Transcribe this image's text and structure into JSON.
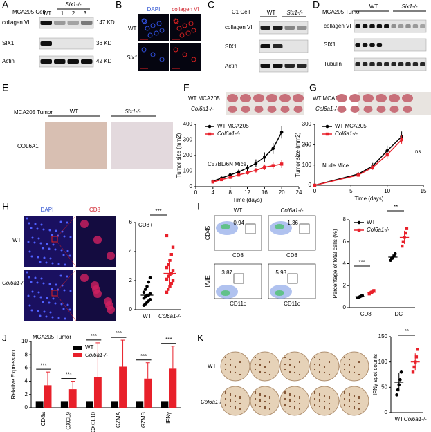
{
  "panels": {
    "A": {
      "label": "A",
      "title": "MCA205 Cell",
      "group": "Six1-/-",
      "lanes": [
        "WT",
        "1",
        "2",
        "3"
      ],
      "rows": [
        "collagen VI",
        "SIX1",
        "Actin"
      ],
      "sizes": [
        "147 KD",
        "36 KD",
        "42 KD"
      ]
    },
    "B": {
      "label": "B",
      "columns": [
        "DAPI",
        "collagen VI"
      ],
      "rows": [
        "WT",
        "Six1-/-"
      ]
    },
    "C": {
      "label": "C",
      "title": "TC1 Cell",
      "groups": [
        "WT",
        "Six1-/-"
      ],
      "rows": [
        "collagen VI",
        "SIX1",
        "Actin"
      ]
    },
    "D": {
      "label": "D",
      "title": "MCA205 Tumor",
      "groups": [
        "WT",
        "Six1-/-"
      ],
      "rows": [
        "collagen VI",
        "SIX1",
        "Tubulin"
      ]
    },
    "E": {
      "label": "E",
      "title": "MCA205 Tumor",
      "groups": [
        "WT",
        "Six1-/-"
      ],
      "row": "COL6A1"
    },
    "F": {
      "label": "F",
      "rows": [
        "WT MCA205",
        "Col6a1-/-"
      ]
    },
    "G": {
      "label": "G",
      "rows": [
        "WT MCA205",
        "Col6a1-/-"
      ]
    },
    "H": {
      "label": "H",
      "columns": [
        "DAPI",
        "CD8"
      ],
      "rows": [
        "WT",
        "Col6a1-/-"
      ]
    },
    "I": {
      "label": "I",
      "columns": [
        "WT",
        "Col6a1-/-"
      ],
      "ylabels": [
        "CD45",
        "IA/IE"
      ],
      "plots": [
        {
          "x": "CD8",
          "gate": "0.94"
        },
        {
          "x": "CD8",
          "gate": "1.36"
        },
        {
          "x": "CD11c",
          "gate": "3.87"
        },
        {
          "x": "CD11c",
          "gate": "5.93"
        }
      ]
    },
    "J": {
      "label": "J"
    },
    "K": {
      "label": "K",
      "rows": [
        "WT",
        "Col6a1-/-"
      ]
    }
  },
  "chart_data": [
    {
      "type": "line",
      "ylabel": "Tumor size (mm2)",
      "xlabel": "Time (days)",
      "xlim": [
        0,
        24
      ],
      "xticks": [
        0,
        4,
        8,
        12,
        16,
        20,
        24
      ],
      "ylim": [
        0,
        400
      ],
      "yticks": [
        0,
        100,
        200,
        300,
        400
      ],
      "x": [
        4,
        6,
        8,
        10,
        12,
        14,
        16,
        18,
        20
      ],
      "series": [
        {
          "name": "WT MCA205",
          "color": "#000000",
          "values": [
            35,
            55,
            75,
            95,
            120,
            150,
            190,
            245,
            350
          ],
          "errors": [
            5,
            8,
            10,
            15,
            20,
            25,
            30,
            35,
            40
          ]
        },
        {
          "name": "Col6a1-/-",
          "color": "#e8202a",
          "values": [
            30,
            45,
            60,
            75,
            90,
            105,
            125,
            135,
            145
          ],
          "errors": [
            5,
            6,
            8,
            10,
            12,
            15,
            18,
            20,
            25
          ]
        }
      ],
      "annotations": [
        "C57BL/6N Mice",
        "**"
      ]
    },
    {
      "type": "line",
      "ylabel": "Tumor size (mm2)",
      "xlabel": "Time (days)",
      "xlim": [
        0,
        15
      ],
      "xticks": [
        0,
        5,
        10,
        15
      ],
      "ylim": [
        0,
        300
      ],
      "yticks": [
        0,
        100,
        200,
        300
      ],
      "x": [
        0,
        6,
        8,
        10,
        12
      ],
      "series": [
        {
          "name": "WT MCA205",
          "color": "#000000",
          "values": [
            0,
            55,
            95,
            170,
            240
          ],
          "errors": [
            0,
            10,
            15,
            25,
            25
          ]
        },
        {
          "name": "Col6a1-/-",
          "color": "#e8202a",
          "values": [
            0,
            50,
            88,
            150,
            225
          ],
          "errors": [
            0,
            8,
            12,
            20,
            20
          ]
        }
      ],
      "annotations": [
        "Nude Mice",
        "ns"
      ]
    },
    {
      "type": "strip",
      "title": "CD8+",
      "ylim": [
        0,
        6
      ],
      "yticks": [
        0,
        2,
        4,
        6
      ],
      "categories": [
        "WT",
        "Col6a1-/-"
      ],
      "colors": [
        "#000000",
        "#e8202a"
      ],
      "values": [
        [
          0.3,
          0.4,
          0.5,
          0.6,
          0.7,
          0.8,
          0.9,
          1.0,
          1.0,
          1.1,
          1.2,
          1.4,
          1.6,
          1.9,
          2.2
        ],
        [
          1.2,
          1.4,
          1.6,
          1.8,
          2.0,
          2.1,
          2.3,
          2.4,
          2.5,
          2.7,
          2.9,
          3.1,
          3.4,
          3.8,
          4.3,
          5.1
        ]
      ],
      "means": [
        1.0,
        2.5
      ],
      "sds": [
        0.5,
        1.0
      ],
      "annotations": [
        "***"
      ]
    },
    {
      "type": "strip",
      "ylabel": "Percentage of total cells (%)",
      "ylim": [
        0,
        8
      ],
      "yticks": [
        0,
        2,
        4,
        6,
        8
      ],
      "categories": [
        "CD8",
        "DC"
      ],
      "series": [
        {
          "name": "WT",
          "color": "#000000",
          "values": [
            [
              0.9,
              0.95,
              1.0,
              1.05,
              1.1
            ],
            [
              4.3,
              4.5,
              4.6,
              4.7,
              4.9
            ]
          ],
          "means": [
            1.0,
            4.6
          ],
          "sds": [
            0.1,
            0.25
          ]
        },
        {
          "name": "Col6a1-/-",
          "color": "#e8202a",
          "values": [
            [
              1.25,
              1.35,
              1.4,
              1.45,
              1.55
            ],
            [
              5.6,
              6.0,
              6.4,
              6.8,
              7.2
            ]
          ],
          "means": [
            1.4,
            6.4
          ],
          "sds": [
            0.12,
            0.6
          ]
        }
      ],
      "annotations": [
        "***",
        "**"
      ]
    },
    {
      "type": "bar",
      "title": "MCA205 Tumor",
      "ylabel": "Relative Expression",
      "ylim": [
        0,
        10
      ],
      "yticks": [
        0,
        2,
        4,
        6,
        8,
        10
      ],
      "categories": [
        "CD8a",
        "CXCL9",
        "CXCL10",
        "GZMA",
        "GZMB",
        "IFNγ"
      ],
      "series": [
        {
          "name": "WT",
          "color": "#000000",
          "values": [
            1,
            1,
            1,
            1,
            1,
            1
          ]
        },
        {
          "name": "Col6a1-/-",
          "color": "#e8202a",
          "values": [
            3.4,
            2.8,
            4.6,
            6.2,
            4.4,
            5.9
          ],
          "errors": [
            2.0,
            1.2,
            5.2,
            4.0,
            2.4,
            3.4
          ]
        }
      ],
      "annotations": [
        "***",
        "***",
        "***",
        "***",
        "***",
        "***"
      ]
    },
    {
      "type": "strip",
      "ylabel": "IFNγ spot counts",
      "ylim": [
        0,
        150
      ],
      "yticks": [
        0,
        50,
        100,
        150
      ],
      "categories": [
        "WT",
        "Col6a1-/-"
      ],
      "colors": [
        "#000000",
        "#e8202a"
      ],
      "values": [
        [
          35,
          45,
          55,
          65,
          80
        ],
        [
          80,
          90,
          100,
          110,
          125
        ]
      ],
      "means": [
        60,
        100
      ],
      "sds": [
        18,
        17
      ],
      "annotations": [
        "**"
      ]
    }
  ]
}
